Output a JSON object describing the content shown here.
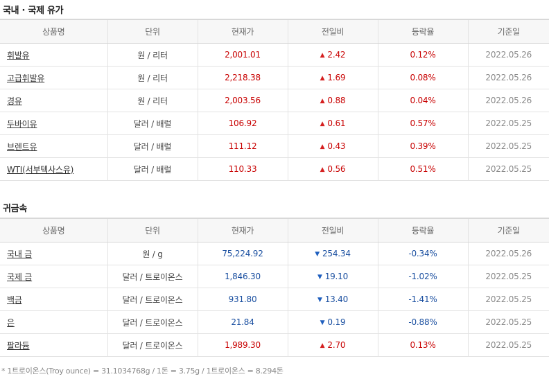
{
  "oil": {
    "title": "국내 · 국제 유가",
    "headers": [
      "상품명",
      "단위",
      "현재가",
      "전일비",
      "등락율",
      "기준일"
    ],
    "rows": [
      {
        "name": "휘발유",
        "unit": "원 / 리터",
        "price": "2,001.01",
        "change": "2.42",
        "direction": "up",
        "rate": "0.12%",
        "date": "2022.05.26"
      },
      {
        "name": "고급휘발유",
        "unit": "원 / 리터",
        "price": "2,218.38",
        "change": "1.69",
        "direction": "up",
        "rate": "0.08%",
        "date": "2022.05.26"
      },
      {
        "name": "경유",
        "unit": "원 / 리터",
        "price": "2,003.56",
        "change": "0.88",
        "direction": "up",
        "rate": "0.04%",
        "date": "2022.05.26"
      },
      {
        "name": "두바이유",
        "unit": "달러 / 배럴",
        "price": "106.92",
        "change": "0.61",
        "direction": "up",
        "rate": "0.57%",
        "date": "2022.05.25"
      },
      {
        "name": "브렌트유",
        "unit": "달러 / 배럴",
        "price": "111.12",
        "change": "0.43",
        "direction": "up",
        "rate": "0.39%",
        "date": "2022.05.25"
      },
      {
        "name": "WTI(서부텍사스유)",
        "unit": "달러 / 배럴",
        "price": "110.33",
        "change": "0.56",
        "direction": "up",
        "rate": "0.51%",
        "date": "2022.05.25"
      }
    ]
  },
  "metal": {
    "title": "귀금속",
    "headers": [
      "상품명",
      "단위",
      "현재가",
      "전일비",
      "등락율",
      "기준일"
    ],
    "rows": [
      {
        "name": "국내 금",
        "unit": "원 / g",
        "price": "75,224.92",
        "change": "254.34",
        "direction": "down",
        "rate": "-0.34%",
        "date": "2022.05.26"
      },
      {
        "name": "국제 금",
        "unit": "달러 / 트로이온스",
        "price": "1,846.30",
        "change": "19.10",
        "direction": "down",
        "rate": "-1.02%",
        "date": "2022.05.25"
      },
      {
        "name": "백금",
        "unit": "달러 / 트로이온스",
        "price": "931.80",
        "change": "13.40",
        "direction": "down",
        "rate": "-1.41%",
        "date": "2022.05.25"
      },
      {
        "name": "은",
        "unit": "달러 / 트로이온스",
        "price": "21.84",
        "change": "0.19",
        "direction": "down",
        "rate": "-0.88%",
        "date": "2022.05.25"
      },
      {
        "name": "팔라듐",
        "unit": "달러 / 트로이온스",
        "price": "1,989.30",
        "change": "2.70",
        "direction": "up",
        "rate": "0.13%",
        "date": "2022.05.25"
      }
    ]
  },
  "footnote": "* 1트로이온스(Troy ounce) = 31.1034768g / 1돈 = 3.75g / 1트로이온스 = 8.294돈",
  "colors": {
    "up": "#c80000",
    "down": "#1a4fa0",
    "header_bg": "#f7f7f7"
  },
  "icons": {
    "up": "triangle-up-icon",
    "down": "triangle-down-icon"
  }
}
